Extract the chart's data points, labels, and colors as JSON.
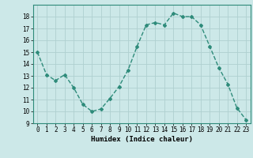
{
  "x": [
    0,
    1,
    2,
    3,
    4,
    5,
    6,
    7,
    8,
    9,
    10,
    11,
    12,
    13,
    14,
    15,
    16,
    17,
    18,
    19,
    20,
    21,
    22,
    23
  ],
  "y": [
    15.0,
    13.1,
    12.6,
    13.1,
    12.0,
    10.6,
    10.0,
    10.2,
    11.1,
    12.1,
    13.5,
    15.5,
    17.3,
    17.5,
    17.3,
    18.3,
    18.0,
    18.0,
    17.3,
    15.5,
    13.7,
    12.3,
    10.3,
    9.3
  ],
  "line_color": "#2e8b7a",
  "marker": "D",
  "marker_size": 2,
  "bg_color": "#cce8e8",
  "grid_color": "#afd0d0",
  "xlabel": "Humidex (Indice chaleur)",
  "xlim": [
    -0.5,
    23.5
  ],
  "ylim": [
    9,
    19
  ],
  "yticks": [
    9,
    10,
    11,
    12,
    13,
    14,
    15,
    16,
    17,
    18
  ],
  "xtick_labels": [
    "0",
    "1",
    "2",
    "3",
    "4",
    "5",
    "6",
    "7",
    "8",
    "9",
    "10",
    "11",
    "12",
    "13",
    "14",
    "15",
    "16",
    "17",
    "18",
    "19",
    "20",
    "21",
    "22",
    "23"
  ],
  "label_fontsize": 6.5,
  "tick_fontsize": 5.5
}
